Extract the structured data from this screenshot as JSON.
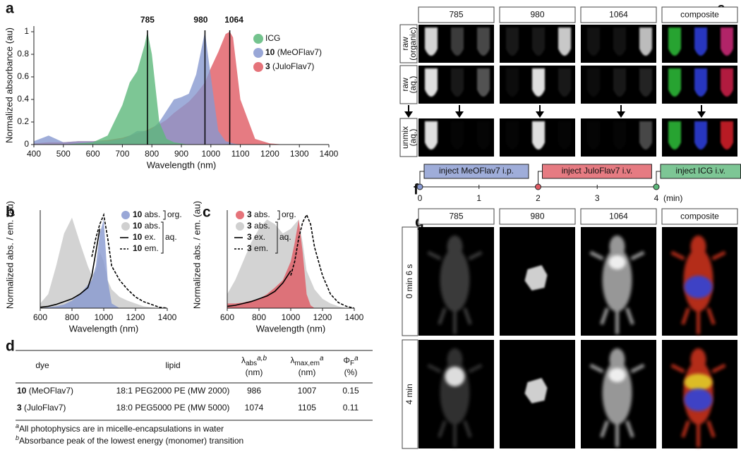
{
  "panel_labels": [
    "a",
    "b",
    "c",
    "d",
    "e",
    "f",
    "g"
  ],
  "chart_data": [
    {
      "type": "area",
      "xlabel": "Wavelength (nm)",
      "ylabel": "Normalized absorbance (au)",
      "x": [
        400,
        450,
        500,
        550,
        600,
        650,
        700,
        725,
        750,
        775,
        785,
        800,
        825,
        850,
        875,
        900,
        925,
        950,
        980,
        1000,
        1025,
        1050,
        1064,
        1075,
        1100,
        1150,
        1200,
        1250,
        1300,
        1350,
        1400
      ],
      "series": [
        {
          "name": "ICG",
          "color": "#5cb87a",
          "filled": true,
          "dashed": false,
          "values": [
            0,
            0,
            0,
            0.01,
            0.02,
            0.08,
            0.35,
            0.55,
            0.65,
            0.88,
            1,
            0.8,
            0.2,
            0.05,
            0.02,
            0.01,
            0,
            0,
            0,
            0,
            0,
            0,
            0,
            0,
            0,
            0,
            0,
            0,
            0,
            0,
            0
          ]
        },
        {
          "name": "10 (MeOFlav7)",
          "color": "#8798d0",
          "filled": true,
          "dashed": false,
          "values": [
            0.03,
            0.08,
            0.02,
            0.03,
            0.03,
            0.03,
            0.05,
            0.08,
            0.12,
            0.12,
            0.12,
            0.14,
            0.2,
            0.3,
            0.4,
            0.42,
            0.45,
            0.62,
            1,
            0.6,
            0.12,
            0.03,
            0.02,
            0.01,
            0,
            0,
            0,
            0,
            0,
            0,
            0
          ]
        },
        {
          "name": "3 (JuloFlav7)",
          "color": "#e05a63",
          "filled": true,
          "dashed": false,
          "values": [
            0.01,
            0.02,
            0.02,
            0.03,
            0.03,
            0.04,
            0.06,
            0.08,
            0.1,
            0.12,
            0.13,
            0.15,
            0.18,
            0.22,
            0.28,
            0.33,
            0.38,
            0.45,
            0.55,
            0.68,
            0.82,
            0.98,
            1,
            0.95,
            0.4,
            0.05,
            0.01,
            0,
            0,
            0,
            0
          ]
        }
      ],
      "markers": [
        785,
        980,
        1064
      ],
      "xlim": [
        400,
        1400
      ],
      "xticks": [
        400,
        500,
        600,
        700,
        800,
        900,
        1000,
        1100,
        1200,
        1300,
        1400
      ],
      "ylim": [
        0,
        1.05
      ],
      "yticks": [
        0,
        0.2,
        0.4,
        0.6,
        0.8,
        1
      ]
    },
    {
      "type": "area",
      "xlabel": "Wavelength (nm)",
      "ylabel": "Normalized abs. / em. (au)",
      "x": [
        600,
        650,
        700,
        750,
        800,
        850,
        900,
        925,
        950,
        975,
        1000,
        1025,
        1050,
        1100,
        1150,
        1200,
        1250,
        1300,
        1350,
        1400
      ],
      "series": [
        {
          "name": "10 abs.",
          "color": "#8798d0",
          "filled": true,
          "dashed": false,
          "values": [
            0,
            0.01,
            0.02,
            0.04,
            0.08,
            0.15,
            0.25,
            0.3,
            0.45,
            0.8,
            0.95,
            0.3,
            0.05,
            0,
            0,
            0,
            0,
            0,
            0,
            0
          ]
        },
        {
          "name": "10 abs.",
          "color": "#c8c8c8",
          "filled": true,
          "dashed": false,
          "values": [
            0.05,
            0.15,
            0.45,
            0.8,
            0.97,
            0.7,
            0.45,
            0.35,
            0.4,
            0.6,
            0.5,
            0.3,
            0.2,
            0.12,
            0.08,
            0.05,
            0.02,
            0.01,
            0,
            0
          ]
        },
        {
          "name": "10 ex.",
          "color": "#000000",
          "filled": false,
          "dashed": false,
          "values": [
            0.01,
            0.02,
            0.04,
            0.07,
            0.1,
            0.15,
            0.22,
            0.35,
            0.6,
            0.85,
            null,
            null,
            null,
            null,
            null,
            null,
            null,
            null,
            null,
            null
          ]
        },
        {
          "name": "10 em.",
          "color": "#000000",
          "filled": false,
          "dashed": true,
          "values": [
            null,
            null,
            null,
            null,
            null,
            null,
            null,
            0.55,
            0.75,
            0.9,
            1,
            0.75,
            0.45,
            0.3,
            0.2,
            0.12,
            0.07,
            0.04,
            0.01,
            0
          ]
        }
      ],
      "group_labels": [
        "org.",
        "aq."
      ],
      "xlim": [
        600,
        1400
      ],
      "xticks": [
        600,
        800,
        1000,
        1200,
        1400
      ],
      "ylim": [
        0,
        1.05
      ]
    },
    {
      "type": "area",
      "xlabel": "Wavelength (nm)",
      "ylabel": "Normalized abs. / em. (au)",
      "x": [
        600,
        650,
        700,
        750,
        800,
        850,
        900,
        950,
        1000,
        1025,
        1050,
        1075,
        1100,
        1125,
        1150,
        1200,
        1250,
        1300,
        1350,
        1400
      ],
      "series": [
        {
          "name": "3 abs.",
          "color": "#e05a63",
          "filled": true,
          "dashed": false,
          "values": [
            0.05,
            0.05,
            0.06,
            0.08,
            0.1,
            0.15,
            0.22,
            0.3,
            0.5,
            0.7,
            0.95,
            0.6,
            0.15,
            0.03,
            0,
            0,
            0,
            0,
            0,
            0
          ]
        },
        {
          "name": "3 abs.",
          "color": "#c8c8c8",
          "filled": true,
          "dashed": false,
          "values": [
            0.15,
            0.3,
            0.5,
            0.7,
            0.85,
            0.95,
            0.9,
            0.8,
            0.85,
            0.9,
            0.95,
            0.7,
            0.4,
            0.3,
            0.2,
            0.1,
            0.05,
            0.02,
            0,
            0
          ]
        },
        {
          "name": "3 ex.",
          "color": "#000000",
          "filled": false,
          "dashed": false,
          "values": [
            0.02,
            0.03,
            0.05,
            0.07,
            0.1,
            0.13,
            0.18,
            0.27,
            0.4,
            null,
            null,
            null,
            null,
            null,
            null,
            null,
            null,
            null,
            null,
            null
          ]
        },
        {
          "name": "3 em.",
          "color": "#000000",
          "filled": false,
          "dashed": true,
          "values": [
            null,
            null,
            null,
            null,
            null,
            null,
            null,
            null,
            0.35,
            0.5,
            0.75,
            0.92,
            1,
            0.9,
            0.65,
            0.35,
            0.15,
            0.06,
            0.02,
            0
          ]
        }
      ],
      "group_labels": [
        "org.",
        "aq."
      ],
      "xlim": [
        600,
        1400
      ],
      "xticks": [
        600,
        800,
        1000,
        1200,
        1400
      ],
      "ylim": [
        0,
        1.05
      ]
    }
  ],
  "table": {
    "header": [
      {
        "text": "dye"
      },
      {
        "text": "lipid"
      },
      {
        "symbol": "λ",
        "subscript": "abs",
        "superscript": "a,b",
        "unit": "(nm)"
      },
      {
        "symbol": "λ",
        "subscript": "max,em",
        "superscript": "a",
        "unit": "(nm)"
      },
      {
        "symbol": "Φ",
        "subscript": "F",
        "superscript": "a",
        "unit": "(%)"
      }
    ],
    "rows": [
      [
        "10 (MeOFlav7)",
        "18:1 PEG2000 PE (MW 2000)",
        986,
        1007,
        0.15
      ],
      [
        "3 (JuloFlav7)",
        "18:0 PEG5000 PE (MW 5000)",
        1074,
        1105,
        0.11
      ]
    ],
    "footnotes": [
      {
        "mark": "a",
        "text": "All photophysics are in micelle-encapsulations in water"
      },
      {
        "mark": "b",
        "text": "Absorbance peak of the lowest energy (monomer) transition"
      }
    ]
  },
  "panel_e": {
    "columns": [
      "785",
      "980",
      "1064",
      "composite"
    ],
    "rows": [
      [
        "raw",
        "(organic)"
      ],
      [
        "raw",
        "(aq.)"
      ],
      [
        "unmix",
        "(aq.)"
      ]
    ]
  },
  "timeline": {
    "xlim": [
      0,
      4
    ],
    "xticks": [
      0,
      1,
      2,
      3,
      4
    ],
    "unit": "(min)",
    "events": [
      {
        "label": "inject MeOFlav7 i.p.",
        "time": 0,
        "color": "#8798d0"
      },
      {
        "label": "inject JuloFlav7 i.v.",
        "time": 2,
        "color": "#e05a63"
      },
      {
        "label": "inject ICG i.v.",
        "time": 4,
        "color": "#5cb87a"
      }
    ]
  },
  "panel_g": {
    "columns": [
      "785",
      "980",
      "1064",
      "composite"
    ],
    "rows": [
      "0 min 6 s",
      "4 min"
    ]
  }
}
